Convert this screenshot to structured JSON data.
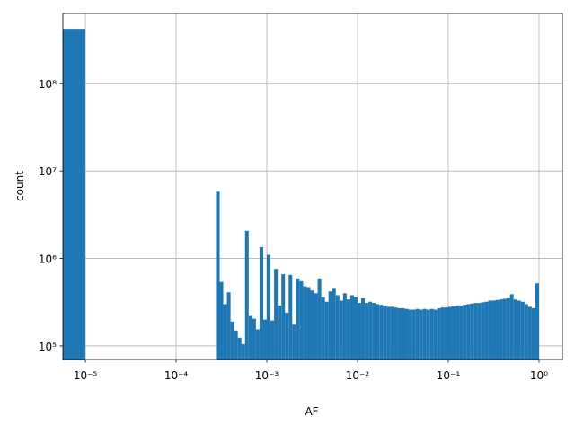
{
  "chart_data": {
    "type": "histogram",
    "xlabel": "AF",
    "ylabel": "count",
    "color": "#1f77b4",
    "grid": true,
    "xscale": "log",
    "yscale": "log",
    "xlim": [
      5.65e-06,
      1.81
    ],
    "ylim": [
      70000,
      630000000
    ],
    "xticks": [
      {
        "value": 1e-05,
        "label": "10⁻⁵"
      },
      {
        "value": 0.0001,
        "label": "10⁻⁴"
      },
      {
        "value": 0.001,
        "label": "10⁻³"
      },
      {
        "value": 0.01,
        "label": "10⁻²"
      },
      {
        "value": 0.1,
        "label": "10⁻¹"
      },
      {
        "value": 1,
        "label": "10⁰"
      }
    ],
    "yticks": [
      {
        "value": 100000,
        "label": "10⁵"
      },
      {
        "value": 1000000,
        "label": "10⁶"
      },
      {
        "value": 10000000,
        "label": "10⁷"
      },
      {
        "value": 100000000,
        "label": "10⁸"
      }
    ],
    "bins": [
      0,
      1e-05,
      1.0965e-05,
      1.2023e-05,
      1.3183e-05,
      1.4454e-05,
      1.5849e-05,
      1.7378e-05,
      1.9055e-05,
      2.0893e-05,
      2.2909e-05,
      2.5119e-05,
      2.7542e-05,
      3.02e-05,
      3.3113e-05,
      3.6308e-05,
      3.9811e-05,
      4.3652e-05,
      4.7863e-05,
      5.2481e-05,
      5.7544e-05,
      6.3096e-05,
      6.9183e-05,
      7.5858e-05,
      8.3176e-05,
      9.1201e-05,
      0.0001,
      0.00010965,
      0.00012023,
      0.00013183,
      0.00014454,
      0.00015849,
      0.00017378,
      0.00019055,
      0.00020893,
      0.00022909,
      0.00025119,
      0.00027542,
      0.000302,
      0.00033113,
      0.00036308,
      0.00039811,
      0.00043652,
      0.00047863,
      0.00052481,
      0.00057544,
      0.00063096,
      0.00069183,
      0.00075858,
      0.00083176,
      0.00091201,
      0.001,
      0.0010965,
      0.0012023,
      0.0013183,
      0.0014454,
      0.0015849,
      0.0017378,
      0.0019055,
      0.0020893,
      0.0022909,
      0.0025119,
      0.0027542,
      0.00302,
      0.0033113,
      0.0036308,
      0.0039811,
      0.0043652,
      0.0047863,
      0.0052481,
      0.0057544,
      0.0063096,
      0.0069183,
      0.0075858,
      0.0083176,
      0.0091201,
      0.01,
      0.010965,
      0.012023,
      0.013183,
      0.014454,
      0.015849,
      0.017378,
      0.019055,
      0.020893,
      0.022909,
      0.025119,
      0.027542,
      0.0302,
      0.033113,
      0.036308,
      0.039811,
      0.043652,
      0.047863,
      0.052481,
      0.057544,
      0.063096,
      0.069183,
      0.075858,
      0.083176,
      0.091201,
      0.1,
      0.10965,
      0.12023,
      0.13183,
      0.14454,
      0.15849,
      0.17378,
      0.19055,
      0.20893,
      0.22909,
      0.25119,
      0.27542,
      0.302,
      0.33113,
      0.36308,
      0.39811,
      0.43652,
      0.47863,
      0.52481,
      0.57544,
      0.63096,
      0.69183,
      0.75858,
      0.83176,
      0.91201,
      1
    ],
    "values": [
      420000000,
      0,
      0,
      0,
      0,
      0,
      0,
      0,
      0,
      0,
      0,
      0,
      0,
      0,
      0,
      0,
      0,
      0,
      0,
      0,
      0,
      0,
      0,
      0,
      0,
      0,
      0,
      0,
      0,
      0,
      0,
      0,
      0,
      0,
      0,
      0,
      0,
      5800000,
      540000,
      300000,
      410000,
      190000,
      150000,
      124000,
      105000,
      2070000,
      220000,
      205000,
      155000,
      1350000,
      200000,
      1100000,
      195000,
      760000,
      290000,
      660000,
      240000,
      650000,
      175000,
      590000,
      550000,
      480000,
      470000,
      430000,
      400000,
      590000,
      360000,
      320000,
      420000,
      460000,
      380000,
      330000,
      400000,
      340000,
      380000,
      360000,
      310000,
      350000,
      310000,
      320000,
      310000,
      300000,
      295000,
      290000,
      280000,
      280000,
      275000,
      270000,
      270000,
      265000,
      260000,
      260000,
      265000,
      260000,
      265000,
      260000,
      265000,
      260000,
      270000,
      275000,
      275000,
      280000,
      285000,
      290000,
      290000,
      295000,
      300000,
      305000,
      310000,
      310000,
      315000,
      320000,
      330000,
      330000,
      335000,
      340000,
      345000,
      350000,
      390000,
      340000,
      330000,
      320000,
      300000,
      280000,
      270000,
      520000
    ]
  }
}
